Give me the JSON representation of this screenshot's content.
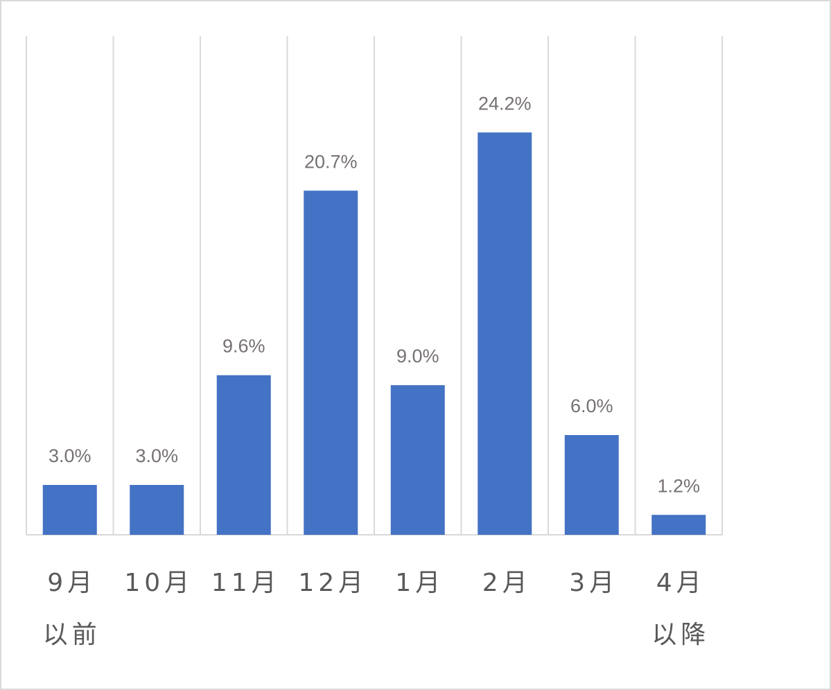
{
  "chart_data": {
    "type": "bar",
    "categories": [
      "9月\n以前",
      "10月",
      "11月",
      "12月",
      "1月",
      "2月",
      "3月",
      "4月\n以降"
    ],
    "values": [
      3.0,
      3.0,
      9.6,
      20.7,
      9.0,
      24.2,
      6.0,
      1.2
    ],
    "value_labels": [
      "3.0%",
      "3.0%",
      "9.6%",
      "20.7%",
      "9.0%",
      "24.2%",
      "6.0%",
      "1.2%"
    ],
    "color": "#4472c4",
    "ylim": [
      0,
      30
    ],
    "grid": true
  }
}
